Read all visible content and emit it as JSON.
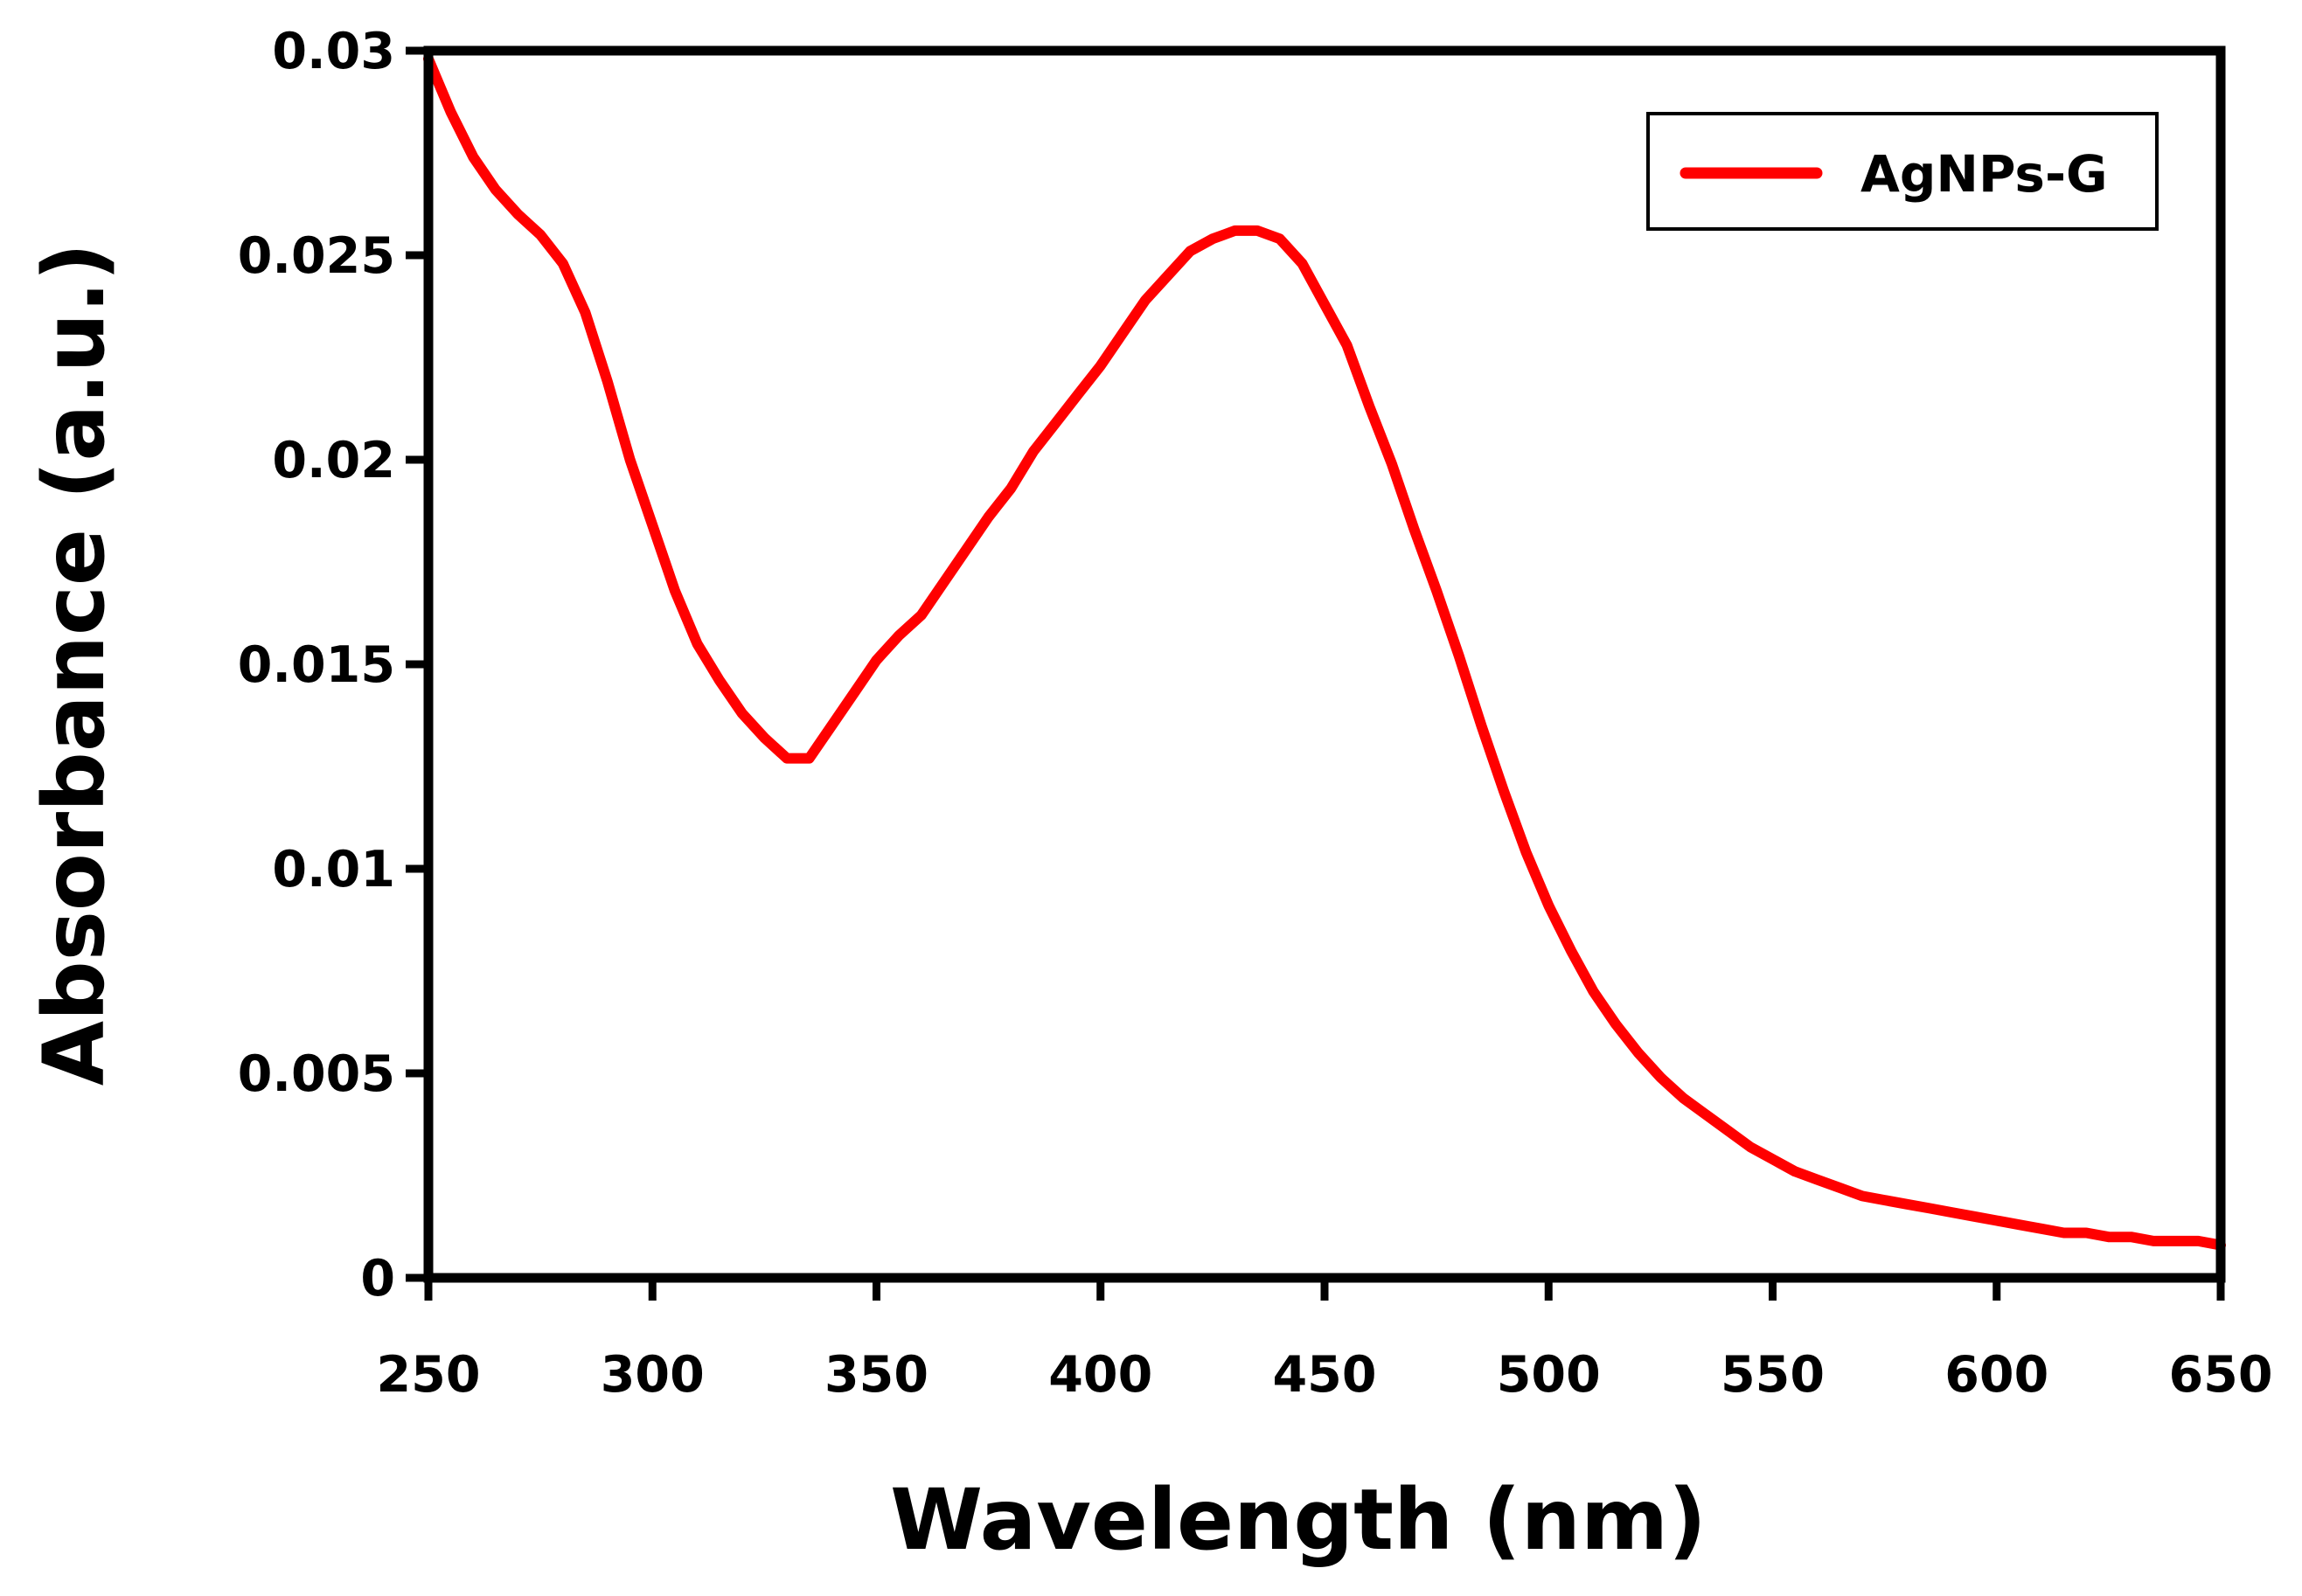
{
  "chart_data": {
    "type": "line",
    "title": "",
    "xlabel": "Wavelength (nm)",
    "ylabel": "Absorbance (a.u.)",
    "xlim": [
      250,
      650
    ],
    "ylim": [
      0,
      0.03
    ],
    "xticks": [
      250,
      300,
      350,
      400,
      450,
      500,
      550,
      600,
      650
    ],
    "xtick_labels": [
      "250",
      "300",
      "350",
      "400",
      "450",
      "500",
      "550",
      "600",
      "650"
    ],
    "yticks": [
      0,
      0.005,
      0.01,
      0.015,
      0.02,
      0.025,
      0.03
    ],
    "ytick_labels": [
      "0",
      "0.005",
      "0.01",
      "0.015",
      "0.02",
      "0.025",
      "0.03"
    ],
    "grid": false,
    "legend": {
      "position": "top-right",
      "entries": [
        "AgNPs-G"
      ]
    },
    "series": [
      {
        "name": "AgNPs-G",
        "color": "#ff0000",
        "x": [
          250,
          255,
          260,
          265,
          270,
          275,
          280,
          285,
          290,
          295,
          300,
          305,
          310,
          315,
          320,
          325,
          330,
          335,
          340,
          345,
          350,
          355,
          360,
          365,
          370,
          375,
          380,
          385,
          390,
          395,
          400,
          405,
          410,
          415,
          420,
          425,
          430,
          435,
          440,
          445,
          450,
          455,
          460,
          465,
          470,
          475,
          480,
          485,
          490,
          495,
          500,
          505,
          510,
          515,
          520,
          525,
          530,
          535,
          540,
          545,
          550,
          555,
          560,
          565,
          570,
          575,
          580,
          585,
          590,
          595,
          600,
          605,
          610,
          615,
          620,
          625,
          630,
          635,
          640,
          645,
          650
        ],
        "values": [
          0.0298,
          0.0285,
          0.0274,
          0.0266,
          0.026,
          0.0255,
          0.0248,
          0.0236,
          0.0219,
          0.02,
          0.0184,
          0.0168,
          0.0155,
          0.0146,
          0.0138,
          0.0132,
          0.0127,
          0.0127,
          0.0135,
          0.0143,
          0.0151,
          0.0157,
          0.0162,
          0.017,
          0.0178,
          0.0186,
          0.0193,
          0.0202,
          0.0209,
          0.0216,
          0.0223,
          0.0231,
          0.0239,
          0.0245,
          0.0251,
          0.0254,
          0.0256,
          0.0256,
          0.0254,
          0.0248,
          0.0238,
          0.0228,
          0.0213,
          0.0199,
          0.0183,
          0.0168,
          0.0152,
          0.0135,
          0.0119,
          0.0104,
          0.0091,
          0.008,
          0.007,
          0.0062,
          0.0055,
          0.0049,
          0.0044,
          0.004,
          0.0036,
          0.0032,
          0.0029,
          0.0026,
          0.0024,
          0.0022,
          0.002,
          0.0019,
          0.0018,
          0.0017,
          0.0016,
          0.0015,
          0.0014,
          0.0013,
          0.0012,
          0.0011,
          0.0011,
          0.001,
          0.001,
          0.0009,
          0.0009,
          0.0009,
          0.0008
        ]
      }
    ]
  }
}
